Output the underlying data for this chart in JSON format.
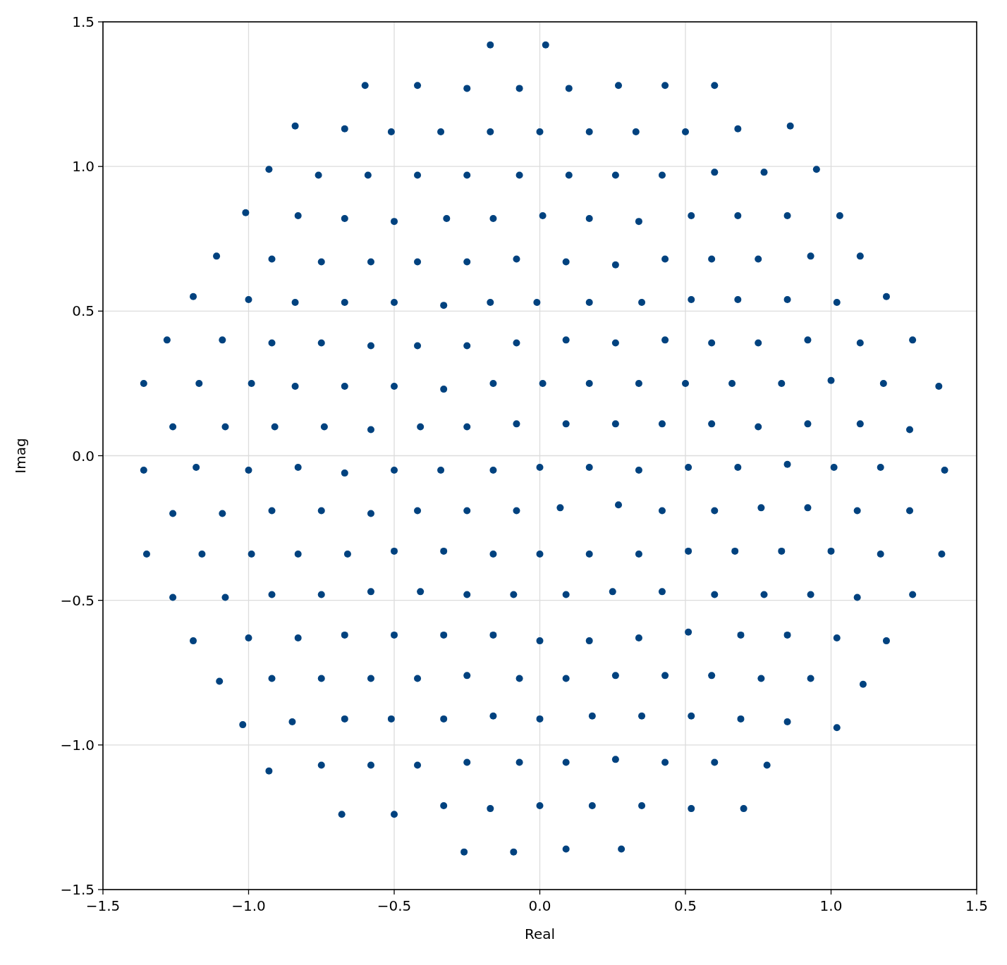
{
  "chart_data": {
    "type": "scatter",
    "xlabel": "Real",
    "ylabel": "Imag",
    "grid": true,
    "marker": "circle",
    "xlim": [
      -1.5,
      1.5
    ],
    "ylim": [
      -1.5,
      1.5
    ],
    "xticks": [
      {
        "value": -1.5,
        "label": "−1.5"
      },
      {
        "value": -1,
        "label": "−1.0"
      },
      {
        "value": -0.5,
        "label": "−0.5"
      },
      {
        "value": 0,
        "label": "0.0"
      },
      {
        "value": 0.5,
        "label": "0.5"
      },
      {
        "value": 1,
        "label": "1.0"
      },
      {
        "value": 1.5,
        "label": "1.5"
      }
    ],
    "yticks": [
      {
        "value": -1.5,
        "label": "−1.5"
      },
      {
        "value": -1,
        "label": "−1.0"
      },
      {
        "value": -0.5,
        "label": "−0.5"
      },
      {
        "value": 0,
        "label": "0.0"
      },
      {
        "value": 0.5,
        "label": "0.5"
      },
      {
        "value": 1,
        "label": "1.0"
      },
      {
        "value": 1.5,
        "label": "1.5"
      }
    ],
    "series": [
      {
        "color": "#00427f",
        "x": [
          -0.17,
          0.02,
          -0.6,
          -0.42,
          -0.25,
          -0.07,
          0.1,
          0.27,
          0.43,
          0.6,
          -0.84,
          -0.67,
          -0.51,
          -0.34,
          -0.17,
          0,
          0.17,
          0.33,
          0.5,
          0.68,
          0.86,
          -0.93,
          -0.76,
          -0.59,
          -0.42,
          -0.25,
          -0.07,
          0.1,
          0.26,
          0.42,
          0.6,
          0.77,
          0.95,
          -1.01,
          -0.83,
          -0.67,
          -0.5,
          -0.32,
          -0.16,
          0.01,
          0.17,
          0.34,
          0.52,
          0.68,
          0.85,
          1.03,
          -1.11,
          -0.92,
          -0.75,
          -0.58,
          -0.42,
          -0.25,
          -0.08,
          0.09,
          0.26,
          0.43,
          0.59,
          0.75,
          0.93,
          1.1,
          -1.19,
          -1,
          -0.84,
          -0.67,
          -0.5,
          -0.33,
          -0.17,
          -0.01,
          0.17,
          0.35,
          0.52,
          0.68,
          0.85,
          1.02,
          1.19,
          -1.28,
          -1.09,
          -0.92,
          -0.75,
          -0.58,
          -0.42,
          -0.25,
          -0.08,
          0.09,
          0.26,
          0.43,
          0.59,
          0.75,
          0.92,
          1.1,
          1.28,
          -1.36,
          -1.17,
          -0.99,
          -0.84,
          -0.67,
          -0.5,
          -0.33,
          -0.16,
          0.01,
          0.17,
          0.34,
          0.5,
          0.66,
          0.83,
          1,
          1.18,
          1.37,
          -1.26,
          -1.08,
          -0.91,
          -0.74,
          -0.58,
          -0.41,
          -0.25,
          -0.08,
          0.09,
          0.26,
          0.42,
          0.59,
          0.75,
          0.92,
          1.1,
          1.27,
          -1.36,
          -1.18,
          -1,
          -0.83,
          -0.67,
          -0.5,
          -0.34,
          -0.16,
          0,
          0.17,
          0.34,
          0.51,
          0.68,
          0.85,
          1.01,
          1.17,
          1.39,
          -1.26,
          -1.09,
          -0.92,
          -0.75,
          -0.58,
          -0.42,
          -0.25,
          -0.08,
          0.07,
          0.27,
          0.42,
          0.6,
          0.76,
          0.92,
          1.09,
          1.27,
          -1.35,
          -1.16,
          -0.99,
          -0.83,
          -0.66,
          -0.5,
          -0.33,
          -0.16,
          0,
          0.17,
          0.34,
          0.51,
          0.67,
          0.83,
          1,
          1.17,
          1.38,
          -1.26,
          -1.08,
          -0.92,
          -0.75,
          -0.58,
          -0.41,
          -0.25,
          -0.09,
          0.09,
          0.25,
          0.42,
          0.6,
          0.77,
          0.93,
          1.09,
          1.28,
          -1.19,
          -1,
          -0.83,
          -0.67,
          -0.5,
          -0.33,
          -0.16,
          0,
          0.17,
          0.34,
          0.51,
          0.69,
          0.85,
          1.02,
          1.19,
          -1.1,
          -0.92,
          -0.75,
          -0.58,
          -0.42,
          -0.25,
          -0.07,
          0.09,
          0.26,
          0.43,
          0.59,
          0.76,
          0.93,
          1.11,
          -1.02,
          -0.85,
          -0.67,
          -0.51,
          -0.33,
          -0.16,
          0,
          0.18,
          0.35,
          0.52,
          0.69,
          0.85,
          1.02,
          -0.93,
          -0.75,
          -0.58,
          -0.42,
          -0.25,
          -0.07,
          0.09,
          0.26,
          0.43,
          0.6,
          0.78,
          -0.68,
          -0.5,
          -0.33,
          -0.17,
          0,
          0.18,
          0.35,
          0.52,
          0.7,
          -0.26,
          -0.09,
          0.09,
          0.28
        ],
        "values": [
          1.42,
          1.42,
          1.28,
          1.28,
          1.27,
          1.27,
          1.27,
          1.28,
          1.28,
          1.28,
          1.14,
          1.13,
          1.12,
          1.12,
          1.12,
          1.12,
          1.12,
          1.12,
          1.12,
          1.13,
          1.14,
          0.99,
          0.97,
          0.97,
          0.97,
          0.97,
          0.97,
          0.97,
          0.97,
          0.97,
          0.98,
          0.98,
          0.99,
          0.84,
          0.83,
          0.82,
          0.81,
          0.82,
          0.82,
          0.83,
          0.82,
          0.81,
          0.83,
          0.83,
          0.83,
          0.83,
          0.69,
          0.68,
          0.67,
          0.67,
          0.67,
          0.67,
          0.68,
          0.67,
          0.66,
          0.68,
          0.68,
          0.68,
          0.69,
          0.69,
          0.55,
          0.54,
          0.53,
          0.53,
          0.53,
          0.52,
          0.53,
          0.53,
          0.53,
          0.53,
          0.54,
          0.54,
          0.54,
          0.53,
          0.55,
          0.4,
          0.4,
          0.39,
          0.39,
          0.38,
          0.38,
          0.38,
          0.39,
          0.4,
          0.39,
          0.4,
          0.39,
          0.39,
          0.4,
          0.39,
          0.4,
          0.25,
          0.25,
          0.25,
          0.24,
          0.24,
          0.24,
          0.23,
          0.25,
          0.25,
          0.25,
          0.25,
          0.25,
          0.25,
          0.25,
          0.26,
          0.25,
          0.24,
          0.1,
          0.1,
          0.1,
          0.1,
          0.09,
          0.1,
          0.1,
          0.11,
          0.11,
          0.11,
          0.11,
          0.11,
          0.1,
          0.11,
          0.11,
          0.09,
          -0.05,
          -0.04,
          -0.05,
          -0.04,
          -0.06,
          -0.05,
          -0.05,
          -0.05,
          -0.04,
          -0.04,
          -0.05,
          -0.04,
          -0.04,
          -0.03,
          -0.04,
          -0.04,
          -0.05,
          -0.2,
          -0.2,
          -0.19,
          -0.19,
          -0.2,
          -0.19,
          -0.19,
          -0.19,
          -0.18,
          -0.17,
          -0.19,
          -0.19,
          -0.18,
          -0.18,
          -0.19,
          -0.19,
          -0.34,
          -0.34,
          -0.34,
          -0.34,
          -0.34,
          -0.33,
          -0.33,
          -0.34,
          -0.34,
          -0.34,
          -0.34,
          -0.33,
          -0.33,
          -0.33,
          -0.33,
          -0.34,
          -0.34,
          -0.49,
          -0.49,
          -0.48,
          -0.48,
          -0.47,
          -0.47,
          -0.48,
          -0.48,
          -0.48,
          -0.47,
          -0.47,
          -0.48,
          -0.48,
          -0.48,
          -0.49,
          -0.48,
          -0.64,
          -0.63,
          -0.63,
          -0.62,
          -0.62,
          -0.62,
          -0.62,
          -0.64,
          -0.64,
          -0.63,
          -0.61,
          -0.62,
          -0.62,
          -0.63,
          -0.64,
          -0.78,
          -0.77,
          -0.77,
          -0.77,
          -0.77,
          -0.76,
          -0.77,
          -0.77,
          -0.76,
          -0.76,
          -0.76,
          -0.77,
          -0.77,
          -0.79,
          -0.93,
          -0.92,
          -0.91,
          -0.91,
          -0.91,
          -0.9,
          -0.91,
          -0.9,
          -0.9,
          -0.9,
          -0.91,
          -0.92,
          -0.94,
          -1.09,
          -1.07,
          -1.07,
          -1.07,
          -1.06,
          -1.06,
          -1.06,
          -1.05,
          -1.06,
          -1.06,
          -1.07,
          -1.24,
          -1.24,
          -1.21,
          -1.22,
          -1.21,
          -1.21,
          -1.21,
          -1.22,
          -1.22,
          -1.37,
          -1.37,
          -1.36,
          -1.36
        ]
      }
    ]
  }
}
